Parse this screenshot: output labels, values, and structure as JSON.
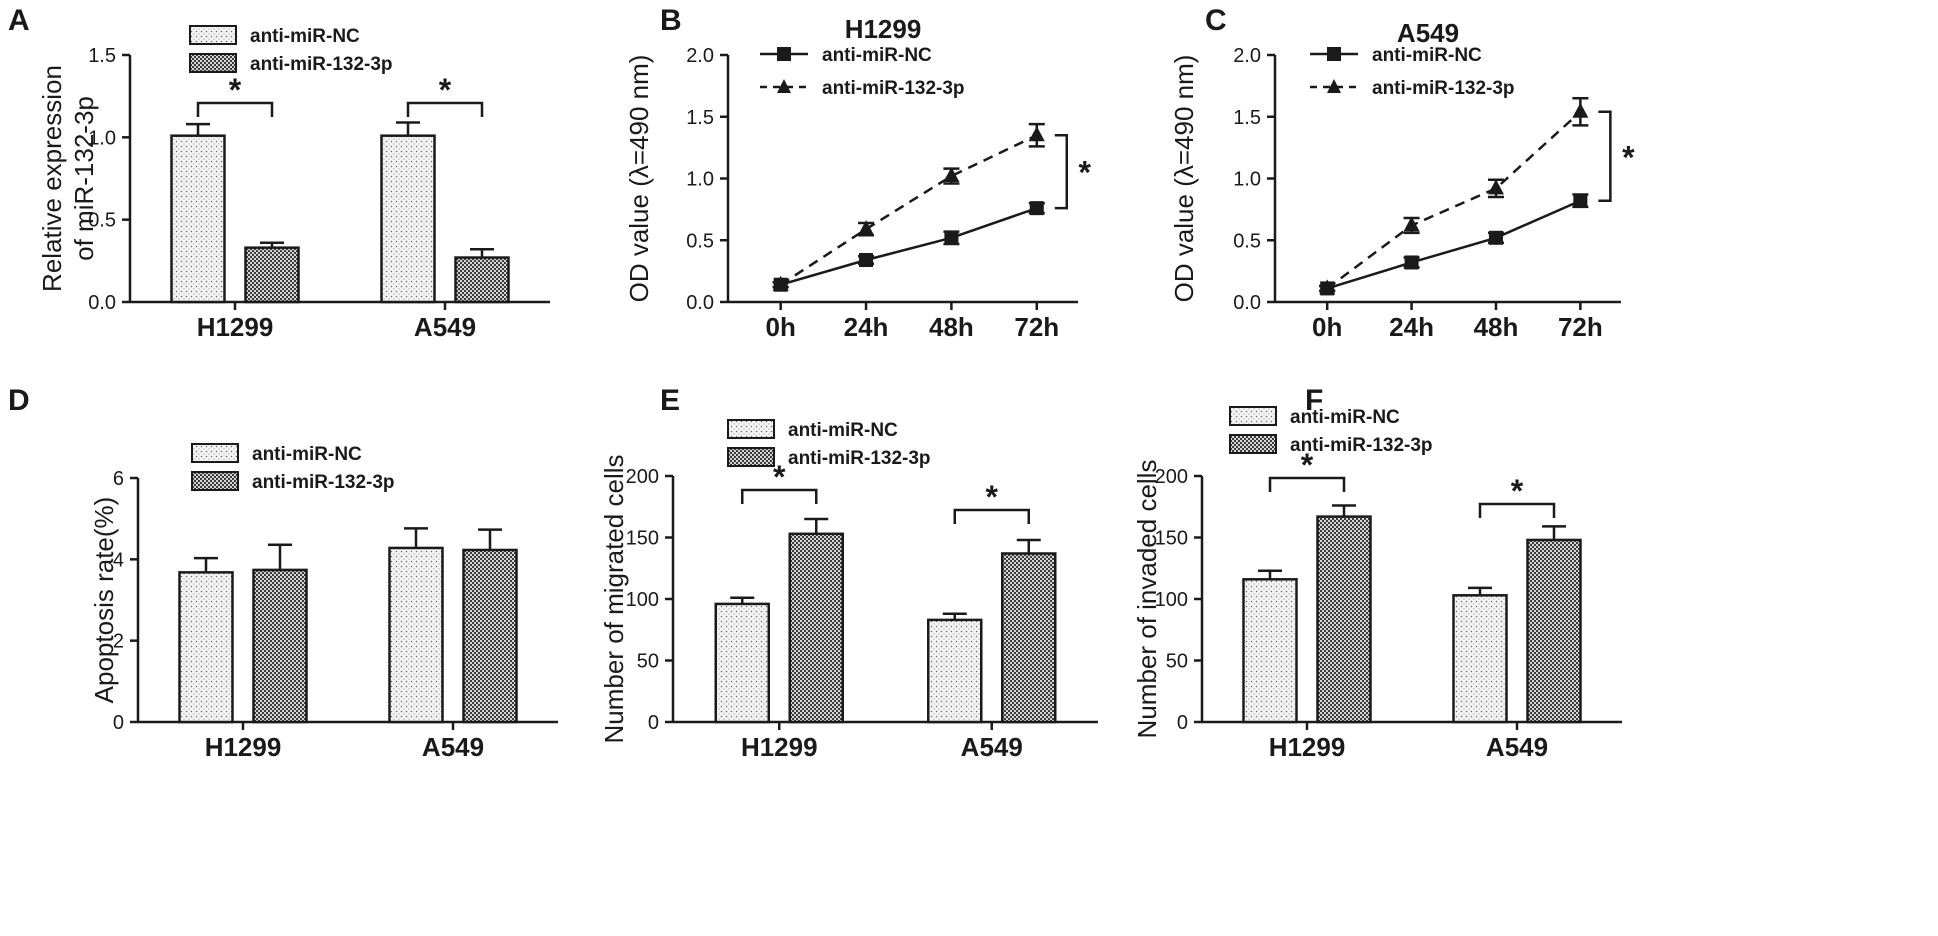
{
  "figure": {
    "background": "#ffffff",
    "ink": "#1a1a1a",
    "fills": {
      "anti-miR-NC": "light-dotted",
      "anti-miR-132-3p": "dark-checkered"
    }
  },
  "chart_data": [
    {
      "panel": "A",
      "type": "bar",
      "title": "",
      "xlabel": "",
      "ylabel": "Relative expression\nof miR-132-3p",
      "ylim": [
        0,
        1.5
      ],
      "yticks": [
        0.0,
        0.5,
        1.0,
        1.5
      ],
      "ytick_labels": [
        "0.0",
        "0.5",
        "1.0",
        "1.5"
      ],
      "categories": [
        "H1299",
        "A549"
      ],
      "series": [
        {
          "name": "anti-miR-NC",
          "values": [
            1.01,
            1.01
          ],
          "errors": [
            0.07,
            0.08
          ]
        },
        {
          "name": "anti-miR-132-3p",
          "values": [
            0.33,
            0.27
          ],
          "errors": [
            0.03,
            0.05
          ]
        }
      ],
      "legend": "top-left",
      "significance": [
        "*",
        "*"
      ]
    },
    {
      "panel": "B",
      "type": "line",
      "title": "H1299",
      "xlabel": "",
      "ylabel": "OD value (λ=490 nm)",
      "ylim": [
        0,
        2.0
      ],
      "yticks": [
        0.0,
        0.5,
        1.0,
        1.5,
        2.0
      ],
      "ytick_labels": [
        "0.0",
        "0.5",
        "1.0",
        "1.5",
        "2.0"
      ],
      "x": [
        "0h",
        "24h",
        "48h",
        "72h"
      ],
      "series": [
        {
          "name": "anti-miR-NC",
          "marker": "square",
          "line": "solid",
          "values": [
            0.14,
            0.34,
            0.52,
            0.76
          ],
          "errors": [
            0.02,
            0.03,
            0.05,
            0.04
          ]
        },
        {
          "name": "anti-miR-132-3p",
          "marker": "triangle",
          "line": "dashed",
          "values": [
            0.14,
            0.59,
            1.02,
            1.35
          ],
          "errors": [
            0.02,
            0.05,
            0.06,
            0.09
          ]
        }
      ],
      "legend": "top-left",
      "significance": [
        "*"
      ]
    },
    {
      "panel": "C",
      "type": "line",
      "title": "A549",
      "xlabel": "",
      "ylabel": "OD value (λ=490 nm)",
      "ylim": [
        0,
        2.0
      ],
      "yticks": [
        0.0,
        0.5,
        1.0,
        1.5,
        2.0
      ],
      "ytick_labels": [
        "0.0",
        "0.5",
        "1.0",
        "1.5",
        "2.0"
      ],
      "x": [
        "0h",
        "24h",
        "48h",
        "72h"
      ],
      "series": [
        {
          "name": "anti-miR-NC",
          "marker": "square",
          "line": "solid",
          "values": [
            0.11,
            0.32,
            0.52,
            0.82
          ],
          "errors": [
            0.02,
            0.04,
            0.04,
            0.05
          ]
        },
        {
          "name": "anti-miR-132-3p",
          "marker": "triangle",
          "line": "dashed",
          "values": [
            0.11,
            0.62,
            0.92,
            1.54
          ],
          "errors": [
            0.02,
            0.06,
            0.07,
            0.11
          ]
        }
      ],
      "legend": "top-left",
      "significance": [
        "*"
      ]
    },
    {
      "panel": "D",
      "type": "bar",
      "title": "",
      "xlabel": "",
      "ylabel": "Apoptosis rate(%)",
      "ylim": [
        0,
        6
      ],
      "yticks": [
        0,
        2,
        4,
        6
      ],
      "ytick_labels": [
        "0",
        "2",
        "4",
        "6"
      ],
      "categories": [
        "H1299",
        "A549"
      ],
      "series": [
        {
          "name": "anti-miR-NC",
          "values": [
            3.68,
            4.28
          ],
          "errors": [
            0.35,
            0.48
          ]
        },
        {
          "name": "anti-miR-132-3p",
          "values": [
            3.74,
            4.23
          ],
          "errors": [
            0.62,
            0.5
          ]
        }
      ],
      "legend": "top-left",
      "significance": []
    },
    {
      "panel": "E",
      "type": "bar",
      "title": "",
      "xlabel": "",
      "ylabel": "Number of migrated cells",
      "ylim": [
        0,
        200
      ],
      "yticks": [
        0,
        50,
        100,
        150,
        200
      ],
      "ytick_labels": [
        "0",
        "50",
        "100",
        "150",
        "200"
      ],
      "categories": [
        "H1299",
        "A549"
      ],
      "series": [
        {
          "name": "anti-miR-NC",
          "values": [
            96,
            83
          ],
          "errors": [
            5,
            5
          ]
        },
        {
          "name": "anti-miR-132-3p",
          "values": [
            153,
            137
          ],
          "errors": [
            12,
            11
          ]
        }
      ],
      "legend": "top-left",
      "significance": [
        "*",
        "*"
      ]
    },
    {
      "panel": "F",
      "type": "bar",
      "title": "",
      "xlabel": "",
      "ylabel": "Number of invaded cells",
      "ylim": [
        0,
        200
      ],
      "yticks": [
        0,
        50,
        100,
        150,
        200
      ],
      "ytick_labels": [
        "0",
        "50",
        "100",
        "150",
        "200"
      ],
      "categories": [
        "H1299",
        "A549"
      ],
      "series": [
        {
          "name": "anti-miR-NC",
          "values": [
            116,
            103
          ],
          "errors": [
            7,
            6
          ]
        },
        {
          "name": "anti-miR-132-3p",
          "values": [
            167,
            148
          ],
          "errors": [
            9,
            11
          ]
        }
      ],
      "legend": "top-left",
      "significance": [
        "*",
        "*"
      ]
    }
  ]
}
